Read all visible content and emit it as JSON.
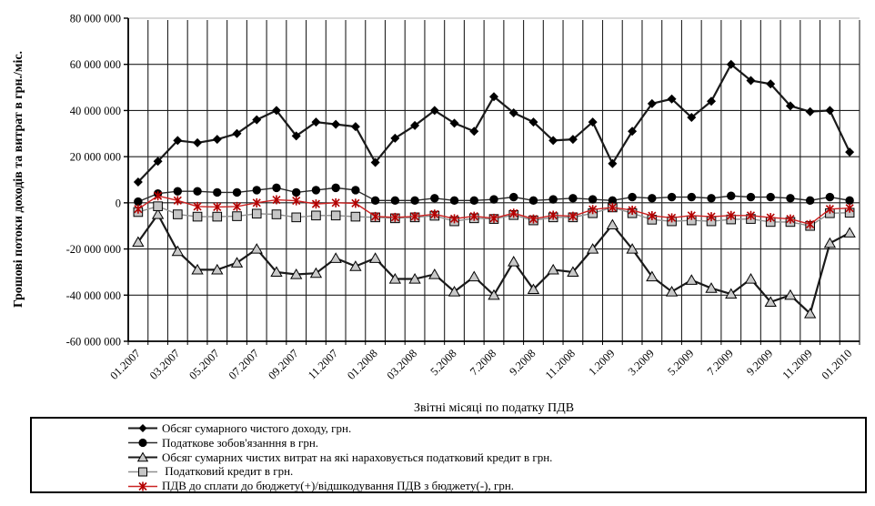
{
  "y_axis": {
    "title": "Грошові потоки доходів та витрат в грн./міс.",
    "ticks": [
      80000000,
      60000000,
      40000000,
      20000000,
      0,
      -20000000,
      -40000000,
      -60000000
    ]
  },
  "x_axis": {
    "title": "Звітні місяці по податку ПДВ",
    "tick_labels": [
      "01.2007",
      "03.2007",
      "05.2007",
      "07.2007",
      "09.2007",
      "11.2007",
      "01.2008",
      "03.2008",
      "5.2008",
      "7.2008",
      "9.2008",
      "11.2008",
      "1.2009",
      "3.2009",
      "5.2009",
      "7.2009",
      "9.2009",
      "11.2009",
      "01.2010"
    ]
  },
  "chart_data": {
    "type": "line",
    "title": "",
    "xlabel": "Звітні місяці по податку ПДВ",
    "ylabel": "Грошові потоки доходів та витрат в грн./міс.",
    "ylim": [
      -60000000,
      80000000
    ],
    "grid": true,
    "legend_position": "bottom",
    "x": [
      "01.2007",
      "02.2007",
      "03.2007",
      "04.2007",
      "05.2007",
      "06.2007",
      "07.2007",
      "08.2007",
      "09.2007",
      "10.2007",
      "11.2007",
      "12.2007",
      "01.2008",
      "02.2008",
      "03.2008",
      "04.2008",
      "5.2008",
      "6.2008",
      "7.2008",
      "8.2008",
      "9.2008",
      "10.2008",
      "11.2008",
      "12.2008",
      "1.2009",
      "2.2009",
      "3.2009",
      "4.2009",
      "5.2009",
      "6.2009",
      "7.2009",
      "8.2009",
      "9.2009",
      "10.2009",
      "11.2009",
      "12.2009",
      "01.2010"
    ],
    "series": [
      {
        "name": "Обсяг сумарного чистого доходу, грн.",
        "marker": "diamond",
        "line_color": "#1a1a1a",
        "marker_stroke": "#000000",
        "marker_fill": "#000000",
        "values": [
          9000000,
          18000000,
          27000000,
          26000000,
          27500000,
          30000000,
          36000000,
          40000000,
          29000000,
          35000000,
          34000000,
          33000000,
          17500000,
          28000000,
          33500000,
          40000000,
          34500000,
          31000000,
          46000000,
          39000000,
          35000000,
          27000000,
          27500000,
          35000000,
          17000000,
          31000000,
          43000000,
          45000000,
          37000000,
          44000000,
          60000000,
          53000000,
          51500000,
          42000000,
          39500000,
          40000000,
          22000000
        ]
      },
      {
        "name": "Податкове зобов'язанння в грн.",
        "marker": "circle",
        "line_color": "#2a2a2a",
        "marker_stroke": "#000000",
        "marker_fill": "#000000",
        "values": [
          500000,
          4000000,
          5000000,
          5000000,
          4500000,
          4500000,
          5500000,
          6500000,
          4500000,
          5500000,
          6500000,
          5500000,
          1000000,
          1000000,
          1000000,
          2000000,
          1000000,
          1000000,
          1500000,
          2500000,
          1000000,
          1500000,
          2000000,
          1500000,
          1000000,
          2500000,
          2000000,
          2500000,
          2500000,
          2000000,
          3000000,
          2500000,
          2500000,
          2000000,
          1000000,
          2500000,
          1000000
        ]
      },
      {
        "name": "Обсяг сумарних чистих витрат на які нараховується податковий кредит в грн.",
        "marker": "triangle",
        "line_color": "#1a1a1a",
        "marker_stroke": "#000000",
        "marker_fill": "#c9c9c9",
        "values": [
          -17000000,
          -5000000,
          -21000000,
          -29000000,
          -29000000,
          -26000000,
          -20000000,
          -30000000,
          -31000000,
          -30500000,
          -24000000,
          -27500000,
          -24000000,
          -33000000,
          -33000000,
          -31000000,
          -38500000,
          -32000000,
          -40000000,
          -25500000,
          -37500000,
          -29000000,
          -30000000,
          -20000000,
          -9500000,
          -20000000,
          -32000000,
          -38500000,
          -33500000,
          -37000000,
          -39500000,
          -33000000,
          -43000000,
          -40000000,
          -48000000,
          -17500000,
          -13000000
        ]
      },
      {
        "name": " Податковий кредит в грн.",
        "marker": "square",
        "line_color": "#8f8f8f",
        "marker_stroke": "#000000",
        "marker_fill": "#c6c6c6",
        "values": [
          -4000000,
          -1500000,
          -5000000,
          -6000000,
          -6000000,
          -5800000,
          -4700000,
          -5000000,
          -6300000,
          -5500000,
          -5500000,
          -6000000,
          -6300000,
          -6700000,
          -6300000,
          -5600000,
          -8000000,
          -6700000,
          -7000000,
          -5300000,
          -7600000,
          -6300000,
          -6300000,
          -4500000,
          -2000000,
          -4500000,
          -7300000,
          -8000000,
          -7600000,
          -8000000,
          -7200000,
          -7000000,
          -8300000,
          -8300000,
          -10000000,
          -4500000,
          -4300000
        ]
      },
      {
        "name": "ПДВ до сплати до бюджету(+)/відшкодування ПДВ з бюджету(-), грн.",
        "marker": "star",
        "line_color": "#cc2222",
        "marker_stroke": "#b30000",
        "marker_fill": "none",
        "values": [
          -2700000,
          3000000,
          1000000,
          -1600000,
          -1800000,
          -1600000,
          0,
          1300000,
          900000,
          -500000,
          0,
          -200000,
          -5900000,
          -6300000,
          -5900000,
          -4900000,
          -6900000,
          -5800000,
          -6700000,
          -4500000,
          -7000000,
          -5400000,
          -5800000,
          -2900000,
          -2000000,
          -3200000,
          -5600000,
          -6500000,
          -5500000,
          -6000000,
          -5500000,
          -5500000,
          -6400000,
          -7000000,
          -9300000,
          -2700000,
          -2300000
        ]
      }
    ]
  }
}
